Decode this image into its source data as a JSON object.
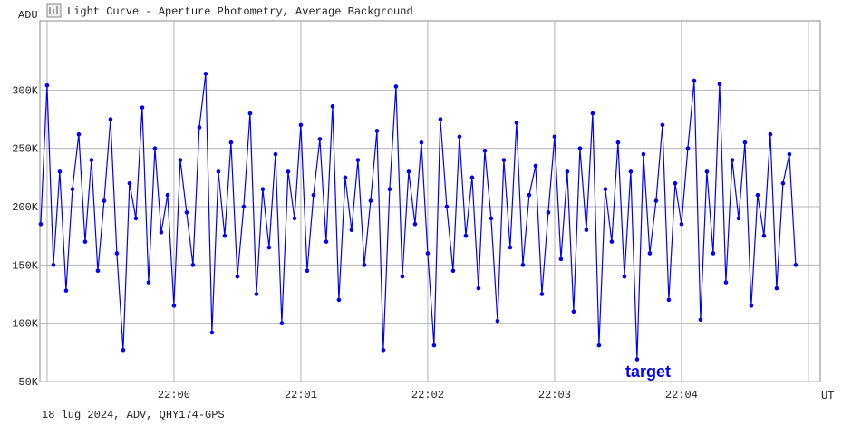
{
  "chart_data": {
    "type": "line",
    "title": "Light Curve - Aperture Photometry, Average Background",
    "y_label": "ADU",
    "x_label": "UT",
    "footer": "18 lug 2024, ADV, QHY174-GPS",
    "annotation": "target",
    "color": "#0000ff",
    "grid": true,
    "ylim": [
      50000,
      350000
    ],
    "yticks": [
      {
        "value": 50000,
        "label": "50K"
      },
      {
        "value": 100000,
        "label": "100K"
      },
      {
        "value": 150000,
        "label": "150K"
      },
      {
        "value": 200000,
        "label": "200K"
      },
      {
        "value": 250000,
        "label": "250K"
      },
      {
        "value": 300000,
        "label": "300K"
      }
    ],
    "xlim": [
      79136.6,
      79505.6
    ],
    "xticks": [
      {
        "value": 79140,
        "label": null
      },
      {
        "value": 79200,
        "label": "22:00"
      },
      {
        "value": 79260,
        "label": "22:01"
      },
      {
        "value": 79320,
        "label": "22:02"
      },
      {
        "value": 79380,
        "label": "22:03"
      },
      {
        "value": 79440,
        "label": "22:04"
      },
      {
        "value": 79500,
        "label": null
      }
    ],
    "x": [
      79137,
      79140,
      79143,
      79146,
      79149,
      79152,
      79155,
      79158,
      79161,
      79164,
      79167,
      79170,
      79173,
      79176,
      79179,
      79182,
      79185,
      79188,
      79191,
      79194,
      79197,
      79200,
      79203,
      79206,
      79209,
      79212,
      79215,
      79218,
      79221,
      79224,
      79227,
      79230,
      79233,
      79236,
      79239,
      79242,
      79245,
      79248,
      79251,
      79254,
      79257,
      79260,
      79263,
      79266,
      79269,
      79272,
      79275,
      79278,
      79281,
      79284,
      79287,
      79290,
      79293,
      79296,
      79299,
      79302,
      79305,
      79308,
      79311,
      79314,
      79317,
      79320,
      79323,
      79326,
      79329,
      79332,
      79335,
      79338,
      79341,
      79344,
      79347,
      79350,
      79353,
      79356,
      79359,
      79362,
      79365,
      79368,
      79371,
      79374,
      79377,
      79380,
      79383,
      79386,
      79389,
      79392,
      79395,
      79398,
      79401,
      79404,
      79407,
      79410,
      79413,
      79416,
      79419,
      79422,
      79425,
      79428,
      79431,
      79434,
      79437,
      79440,
      79443,
      79446,
      79449,
      79452,
      79455,
      79458,
      79461,
      79464,
      79467,
      79470,
      79473,
      79476,
      79479,
      79482,
      79485,
      79488,
      79491,
      79494
    ],
    "values": [
      185000,
      304000,
      150000,
      230000,
      128000,
      215000,
      262000,
      170000,
      240000,
      145000,
      205000,
      275000,
      160000,
      77000,
      220000,
      190000,
      285000,
      135000,
      250000,
      178000,
      210000,
      115000,
      240000,
      195000,
      150000,
      268000,
      314000,
      92000,
      230000,
      175000,
      255000,
      140000,
      200000,
      280000,
      125000,
      215000,
      165000,
      245000,
      100000,
      230000,
      190000,
      270000,
      145000,
      210000,
      258000,
      170000,
      286000,
      120000,
      225000,
      180000,
      240000,
      150000,
      205000,
      265000,
      77000,
      215000,
      303000,
      140000,
      230000,
      185000,
      255000,
      160000,
      81000,
      275000,
      200000,
      145000,
      260000,
      175000,
      225000,
      130000,
      248000,
      190000,
      102000,
      240000,
      165000,
      272000,
      150000,
      210000,
      235000,
      125000,
      195000,
      260000,
      155000,
      230000,
      110000,
      250000,
      180000,
      280000,
      81000,
      215000,
      170000,
      255000,
      140000,
      230000,
      69000,
      245000,
      160000,
      205000,
      270000,
      120000,
      220000,
      185000,
      250000,
      308000,
      103000,
      230000,
      160000,
      305000,
      135000,
      240000,
      190000,
      255000,
      115000,
      210000,
      175000,
      262000,
      130000,
      220000,
      245000,
      150000
    ]
  }
}
